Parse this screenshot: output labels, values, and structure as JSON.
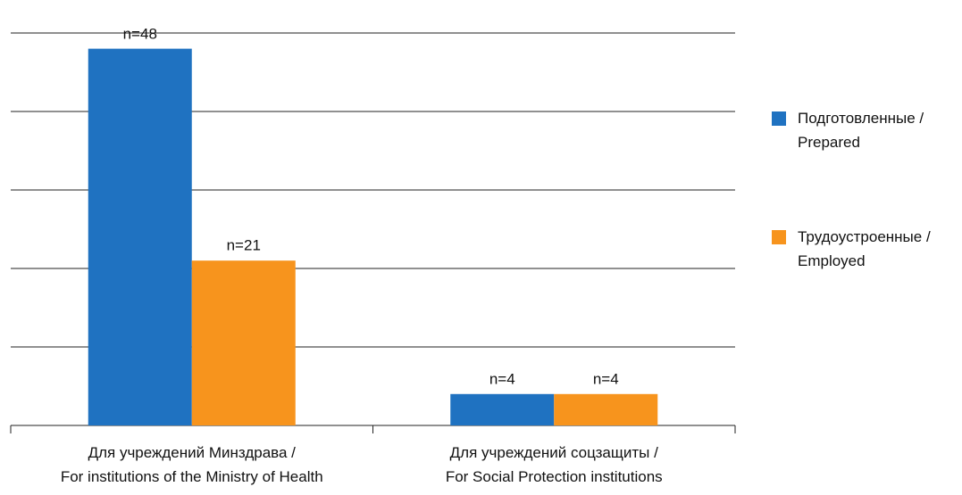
{
  "chart_data": {
    "type": "bar",
    "categories": [
      "Для учреждений Минздрава /\nFor institutions of the Ministry of Health",
      "Для учреждений соцзащиты /\nFor Social Protection institutions"
    ],
    "series": [
      {
        "name": "Подготовленные /\nPrepared",
        "color": "#1f72c1",
        "values": [
          48,
          4
        ],
        "value_labels": [
          "n=48",
          "n=4"
        ]
      },
      {
        "name": "Трудоустроенные /\nEmployed",
        "color": "#f7941d",
        "values": [
          21,
          4
        ],
        "value_labels": [
          "n=21",
          "n=4"
        ]
      }
    ],
    "ylim": [
      0,
      50
    ],
    "yticks": [
      0,
      10,
      20,
      30,
      40,
      50
    ],
    "grid": true,
    "legend": "right"
  }
}
